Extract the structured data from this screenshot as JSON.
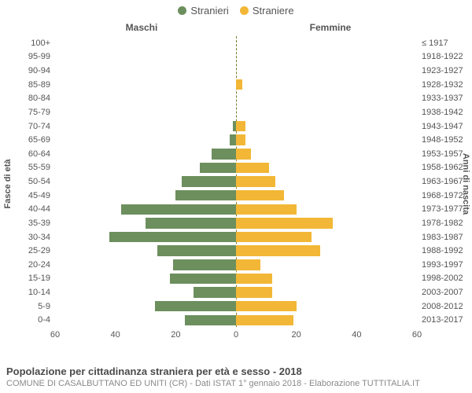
{
  "legend": {
    "male": {
      "label": "Stranieri",
      "color": "#6c8f5d"
    },
    "female": {
      "label": "Straniere",
      "color": "#f2b736"
    }
  },
  "headers": {
    "male": "Maschi",
    "female": "Femmine"
  },
  "axis_titles": {
    "left": "Fasce di età",
    "right": "Anni di nascita"
  },
  "chart": {
    "type": "population-pyramid",
    "x_max": 60,
    "x_ticks_left": [
      60,
      40,
      20,
      0
    ],
    "x_ticks_right": [
      20,
      40,
      60
    ],
    "background_color": "#ffffff",
    "male_color": "#6c8f5d",
    "female_color": "#f2b736",
    "label_color": "#555555",
    "label_fontsize": 11,
    "rows": [
      {
        "age": "100+",
        "year": "≤ 1917",
        "m": 0,
        "f": 0
      },
      {
        "age": "95-99",
        "year": "1918-1922",
        "m": 0,
        "f": 0
      },
      {
        "age": "90-94",
        "year": "1923-1927",
        "m": 0,
        "f": 0
      },
      {
        "age": "85-89",
        "year": "1928-1932",
        "m": 0,
        "f": 2
      },
      {
        "age": "80-84",
        "year": "1933-1937",
        "m": 0,
        "f": 0
      },
      {
        "age": "75-79",
        "year": "1938-1942",
        "m": 0,
        "f": 0
      },
      {
        "age": "70-74",
        "year": "1943-1947",
        "m": 1,
        "f": 3
      },
      {
        "age": "65-69",
        "year": "1948-1952",
        "m": 2,
        "f": 3
      },
      {
        "age": "60-64",
        "year": "1953-1957",
        "m": 8,
        "f": 5
      },
      {
        "age": "55-59",
        "year": "1958-1962",
        "m": 12,
        "f": 11
      },
      {
        "age": "50-54",
        "year": "1963-1967",
        "m": 18,
        "f": 13
      },
      {
        "age": "45-49",
        "year": "1968-1972",
        "m": 20,
        "f": 16
      },
      {
        "age": "40-44",
        "year": "1973-1977",
        "m": 38,
        "f": 20
      },
      {
        "age": "35-39",
        "year": "1978-1982",
        "m": 30,
        "f": 32
      },
      {
        "age": "30-34",
        "year": "1983-1987",
        "m": 42,
        "f": 25
      },
      {
        "age": "25-29",
        "year": "1988-1992",
        "m": 26,
        "f": 28
      },
      {
        "age": "20-24",
        "year": "1993-1997",
        "m": 21,
        "f": 8
      },
      {
        "age": "15-19",
        "year": "1998-2002",
        "m": 22,
        "f": 12
      },
      {
        "age": "10-14",
        "year": "2003-2007",
        "m": 14,
        "f": 12
      },
      {
        "age": "5-9",
        "year": "2008-2012",
        "m": 27,
        "f": 20
      },
      {
        "age": "0-4",
        "year": "2013-2017",
        "m": 17,
        "f": 19
      }
    ]
  },
  "footer": {
    "title": "Popolazione per cittadinanza straniera per età e sesso - 2018",
    "subtitle": "COMUNE DI CASALBUTTANO ED UNITI (CR) - Dati ISTAT 1° gennaio 2018 - Elaborazione TUTTITALIA.IT"
  }
}
